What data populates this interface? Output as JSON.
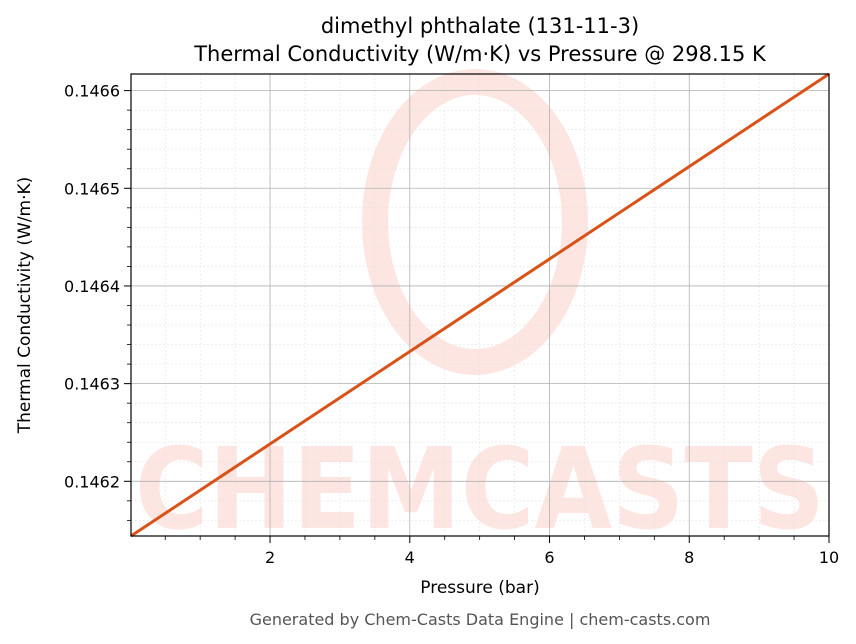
{
  "chart_data": {
    "type": "line",
    "title": "dimethyl phthalate (131-11-3)",
    "subtitle": "Thermal Conductivity (W/m·K) vs Pressure @ 298.15 K",
    "xlabel": "Pressure (bar)",
    "ylabel": "Thermal Conductivity (W/m·K)",
    "xlim": [
      0.01,
      10
    ],
    "ylim": [
      0.146144,
      0.146617
    ],
    "xticks": [
      2,
      4,
      6,
      8,
      10
    ],
    "xtick_labels": [
      "2",
      "4",
      "6",
      "8",
      "10"
    ],
    "yticks": [
      0.1462,
      0.1463,
      0.1464,
      0.1465,
      0.1466
    ],
    "ytick_labels": [
      "0.1462",
      "0.1463",
      "0.1464",
      "0.1465",
      "0.1466"
    ],
    "grid": true,
    "series": [
      {
        "color": "#d95319",
        "x": [
          0.01,
          10
        ],
        "y": [
          0.146144,
          0.146617
        ]
      }
    ]
  },
  "watermark": {
    "text": "CHEMCASTS",
    "color": "#fde3df"
  },
  "footer": "Generated by Chem-Casts Data Engine | chem-casts.com"
}
